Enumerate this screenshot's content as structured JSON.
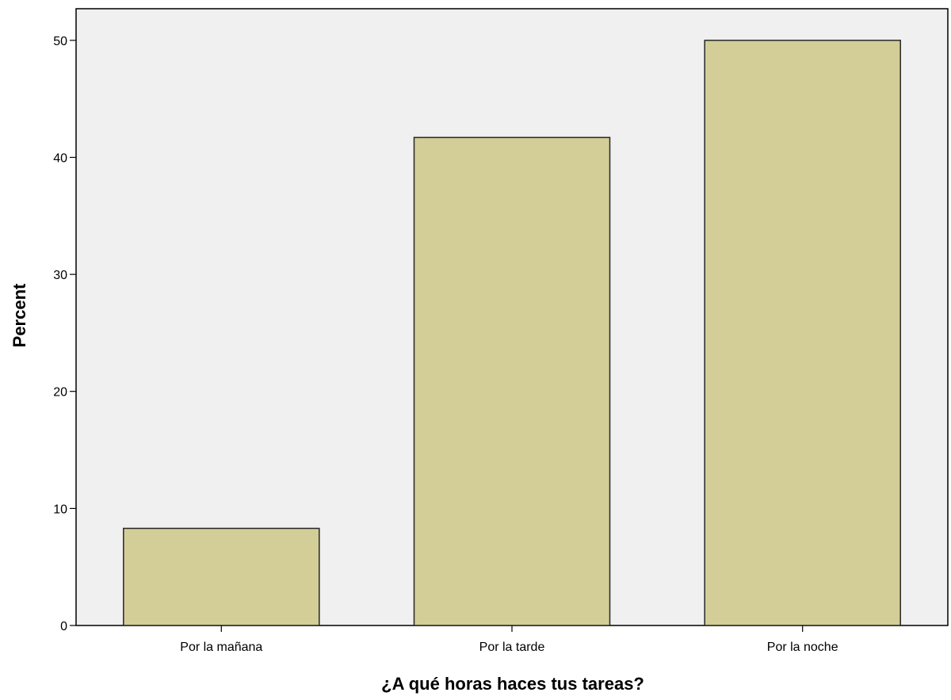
{
  "chart_data": {
    "type": "bar",
    "xlabel": "¿A qué horas haces tus tareas?",
    "ylabel": "Percent",
    "categories": [
      "Por la mañana",
      "Por la tarde",
      "Por la noche"
    ],
    "values": [
      8.3,
      41.7,
      50.0
    ],
    "ylim": [
      0,
      52.7
    ],
    "yticks": [
      "0",
      "10",
      "20",
      "30",
      "40",
      "50"
    ],
    "grid": false,
    "legend": "none",
    "colors": {
      "plot_background": "#f0f0f0",
      "bar_fill": "#d3ce97",
      "bar_stroke": "#262626",
      "axis": "#000000"
    }
  }
}
